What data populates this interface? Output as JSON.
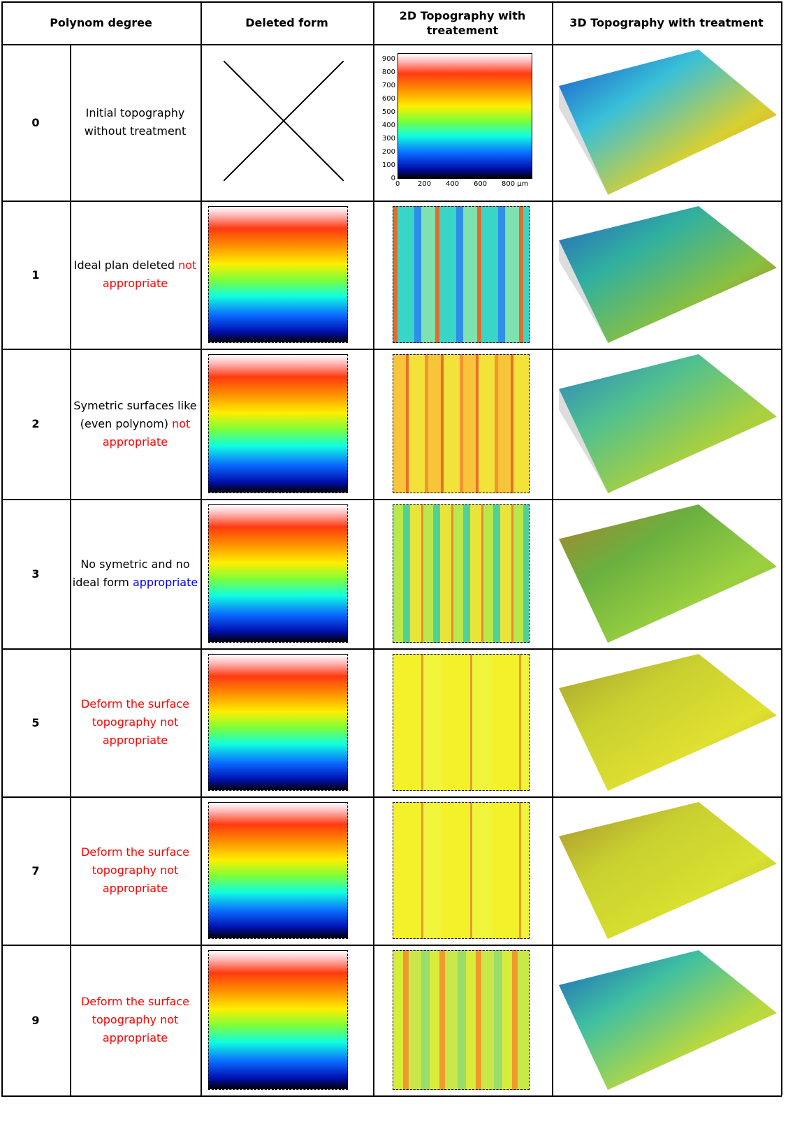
{
  "header": {
    "polynom_degree": "Polynom degree",
    "deleted_form": "Deleted form",
    "topography_2d": "2D Topography with treatement",
    "topography_3d": "3D Topography with treatment"
  },
  "rows": [
    {
      "degree": 0,
      "description": [
        {
          "text": "Initial topography without treatment",
          "color": "#000000"
        }
      ]
    },
    {
      "degree": 1,
      "description": [
        {
          "text": "Ideal plan deleted ",
          "color": "#000000"
        },
        {
          "text": "not appropriate",
          "color": "#ff0000"
        }
      ]
    },
    {
      "degree": 2,
      "description": [
        {
          "text": "Symetric surfaces like (even polynom) ",
          "color": "#000000"
        },
        {
          "text": "not appropriate",
          "color": "#ff0000"
        }
      ]
    },
    {
      "degree": 3,
      "description": [
        {
          "text": "No symetric and no ideal form ",
          "color": "#000000"
        },
        {
          "text": "appropriate",
          "color": "#0000ff"
        }
      ]
    },
    {
      "degree": 5,
      "description": [
        {
          "text": "Deform the surface topography not appropriate",
          "color": "#ff0000"
        }
      ]
    },
    {
      "degree": 7,
      "description": [
        {
          "text": "Deform the surface topography not appropriate",
          "color": "#ff0000"
        }
      ]
    },
    {
      "degree": 9,
      "description": [
        {
          "text": "Deform the surface topography not appropriate",
          "color": "#ff0000"
        }
      ]
    }
  ],
  "plot_axis": {
    "y_labels": [
      900,
      800,
      700,
      600,
      500,
      400,
      300,
      200,
      100,
      0
    ],
    "x_labels": [
      "0",
      "200",
      "400",
      "600",
      "800 µm"
    ]
  }
}
